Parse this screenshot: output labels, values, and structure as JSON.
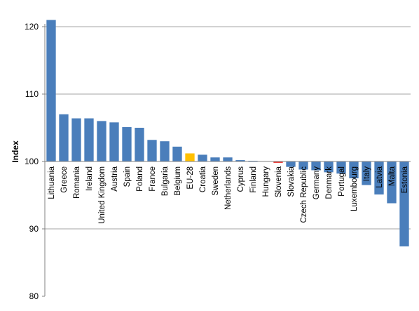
{
  "chart_data": {
    "type": "bar",
    "title": "",
    "xlabel": "",
    "ylabel": "Index",
    "ylim": [
      80,
      120
    ],
    "yticks": [
      80,
      90,
      100,
      110,
      120
    ],
    "baseline": 100,
    "grid": true,
    "categories": [
      "Lithuania",
      "Greece",
      "Romania",
      "Ireland",
      "United Kingdom",
      "Austria",
      "Spain",
      "Poland",
      "France",
      "Bulgaria",
      "Belgium",
      "EU-28",
      "Croatia",
      "Sweden",
      "Netherlands",
      "Cyprus",
      "Finland",
      "Hungary",
      "Slovenia",
      "Slovakia",
      "Czech Republic",
      "Germany",
      "Denmark",
      "Portugal",
      "Luxembourg",
      "Italy",
      "Latvia",
      "Malta",
      "Estonia"
    ],
    "values": [
      121.0,
      107.0,
      106.4,
      106.4,
      106.0,
      105.8,
      105.1,
      105.0,
      103.2,
      103.0,
      102.2,
      101.2,
      101.0,
      100.6,
      100.6,
      100.2,
      100.1,
      100.05,
      99.8,
      99.2,
      98.8,
      98.7,
      98.4,
      98.2,
      97.5,
      96.5,
      95.1,
      93.8,
      87.4
    ],
    "colors": {
      "default": "#4a7ebb",
      "highlight": {
        "EU-28": "#ffc000",
        "Slovenia": "#e8302b"
      },
      "grid": "#a6a6a6",
      "axis": "#808080"
    }
  }
}
